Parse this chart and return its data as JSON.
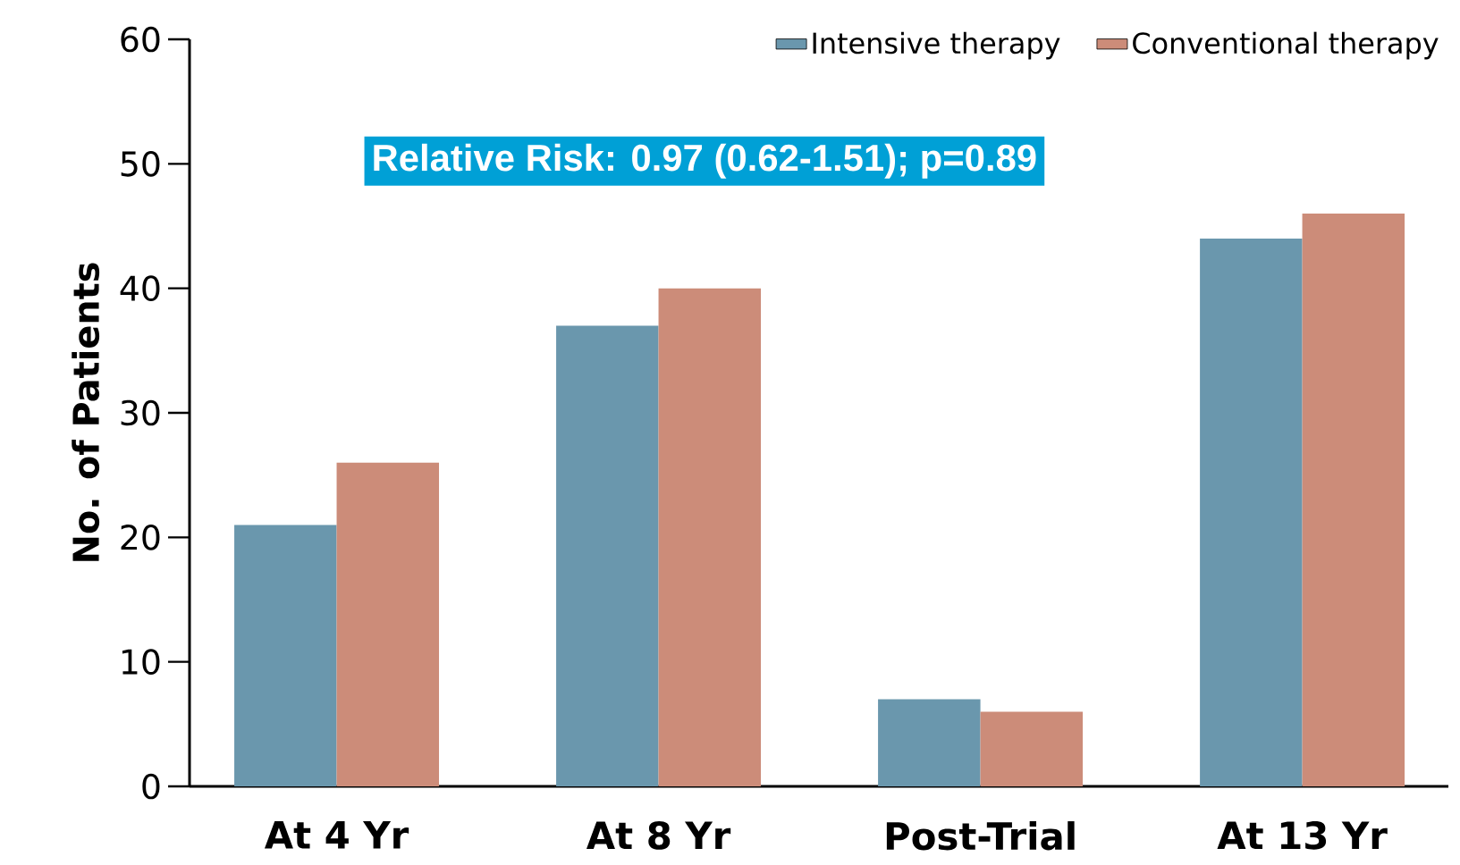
{
  "chart_data": {
    "type": "bar",
    "ylabel": "No. of Patients",
    "categories": [
      "At 4 Yr",
      "At 8 Yr",
      "Post-Trial",
      "At 13 Yr"
    ],
    "series": [
      {
        "name": "Intensive therapy",
        "color": "#6a97ad",
        "values": [
          21,
          37,
          7,
          44
        ]
      },
      {
        "name": "Conventional therapy",
        "color": "#cc8c79",
        "values": [
          26,
          40,
          6,
          46
        ]
      }
    ],
    "ylim": [
      0,
      60
    ],
    "yticks": [
      0,
      10,
      20,
      30,
      40,
      50,
      60
    ],
    "grid": false,
    "legend": "top right",
    "annotations": [
      "Relative Risk: 0.97 (0.62-1.51); p=0.89"
    ]
  }
}
